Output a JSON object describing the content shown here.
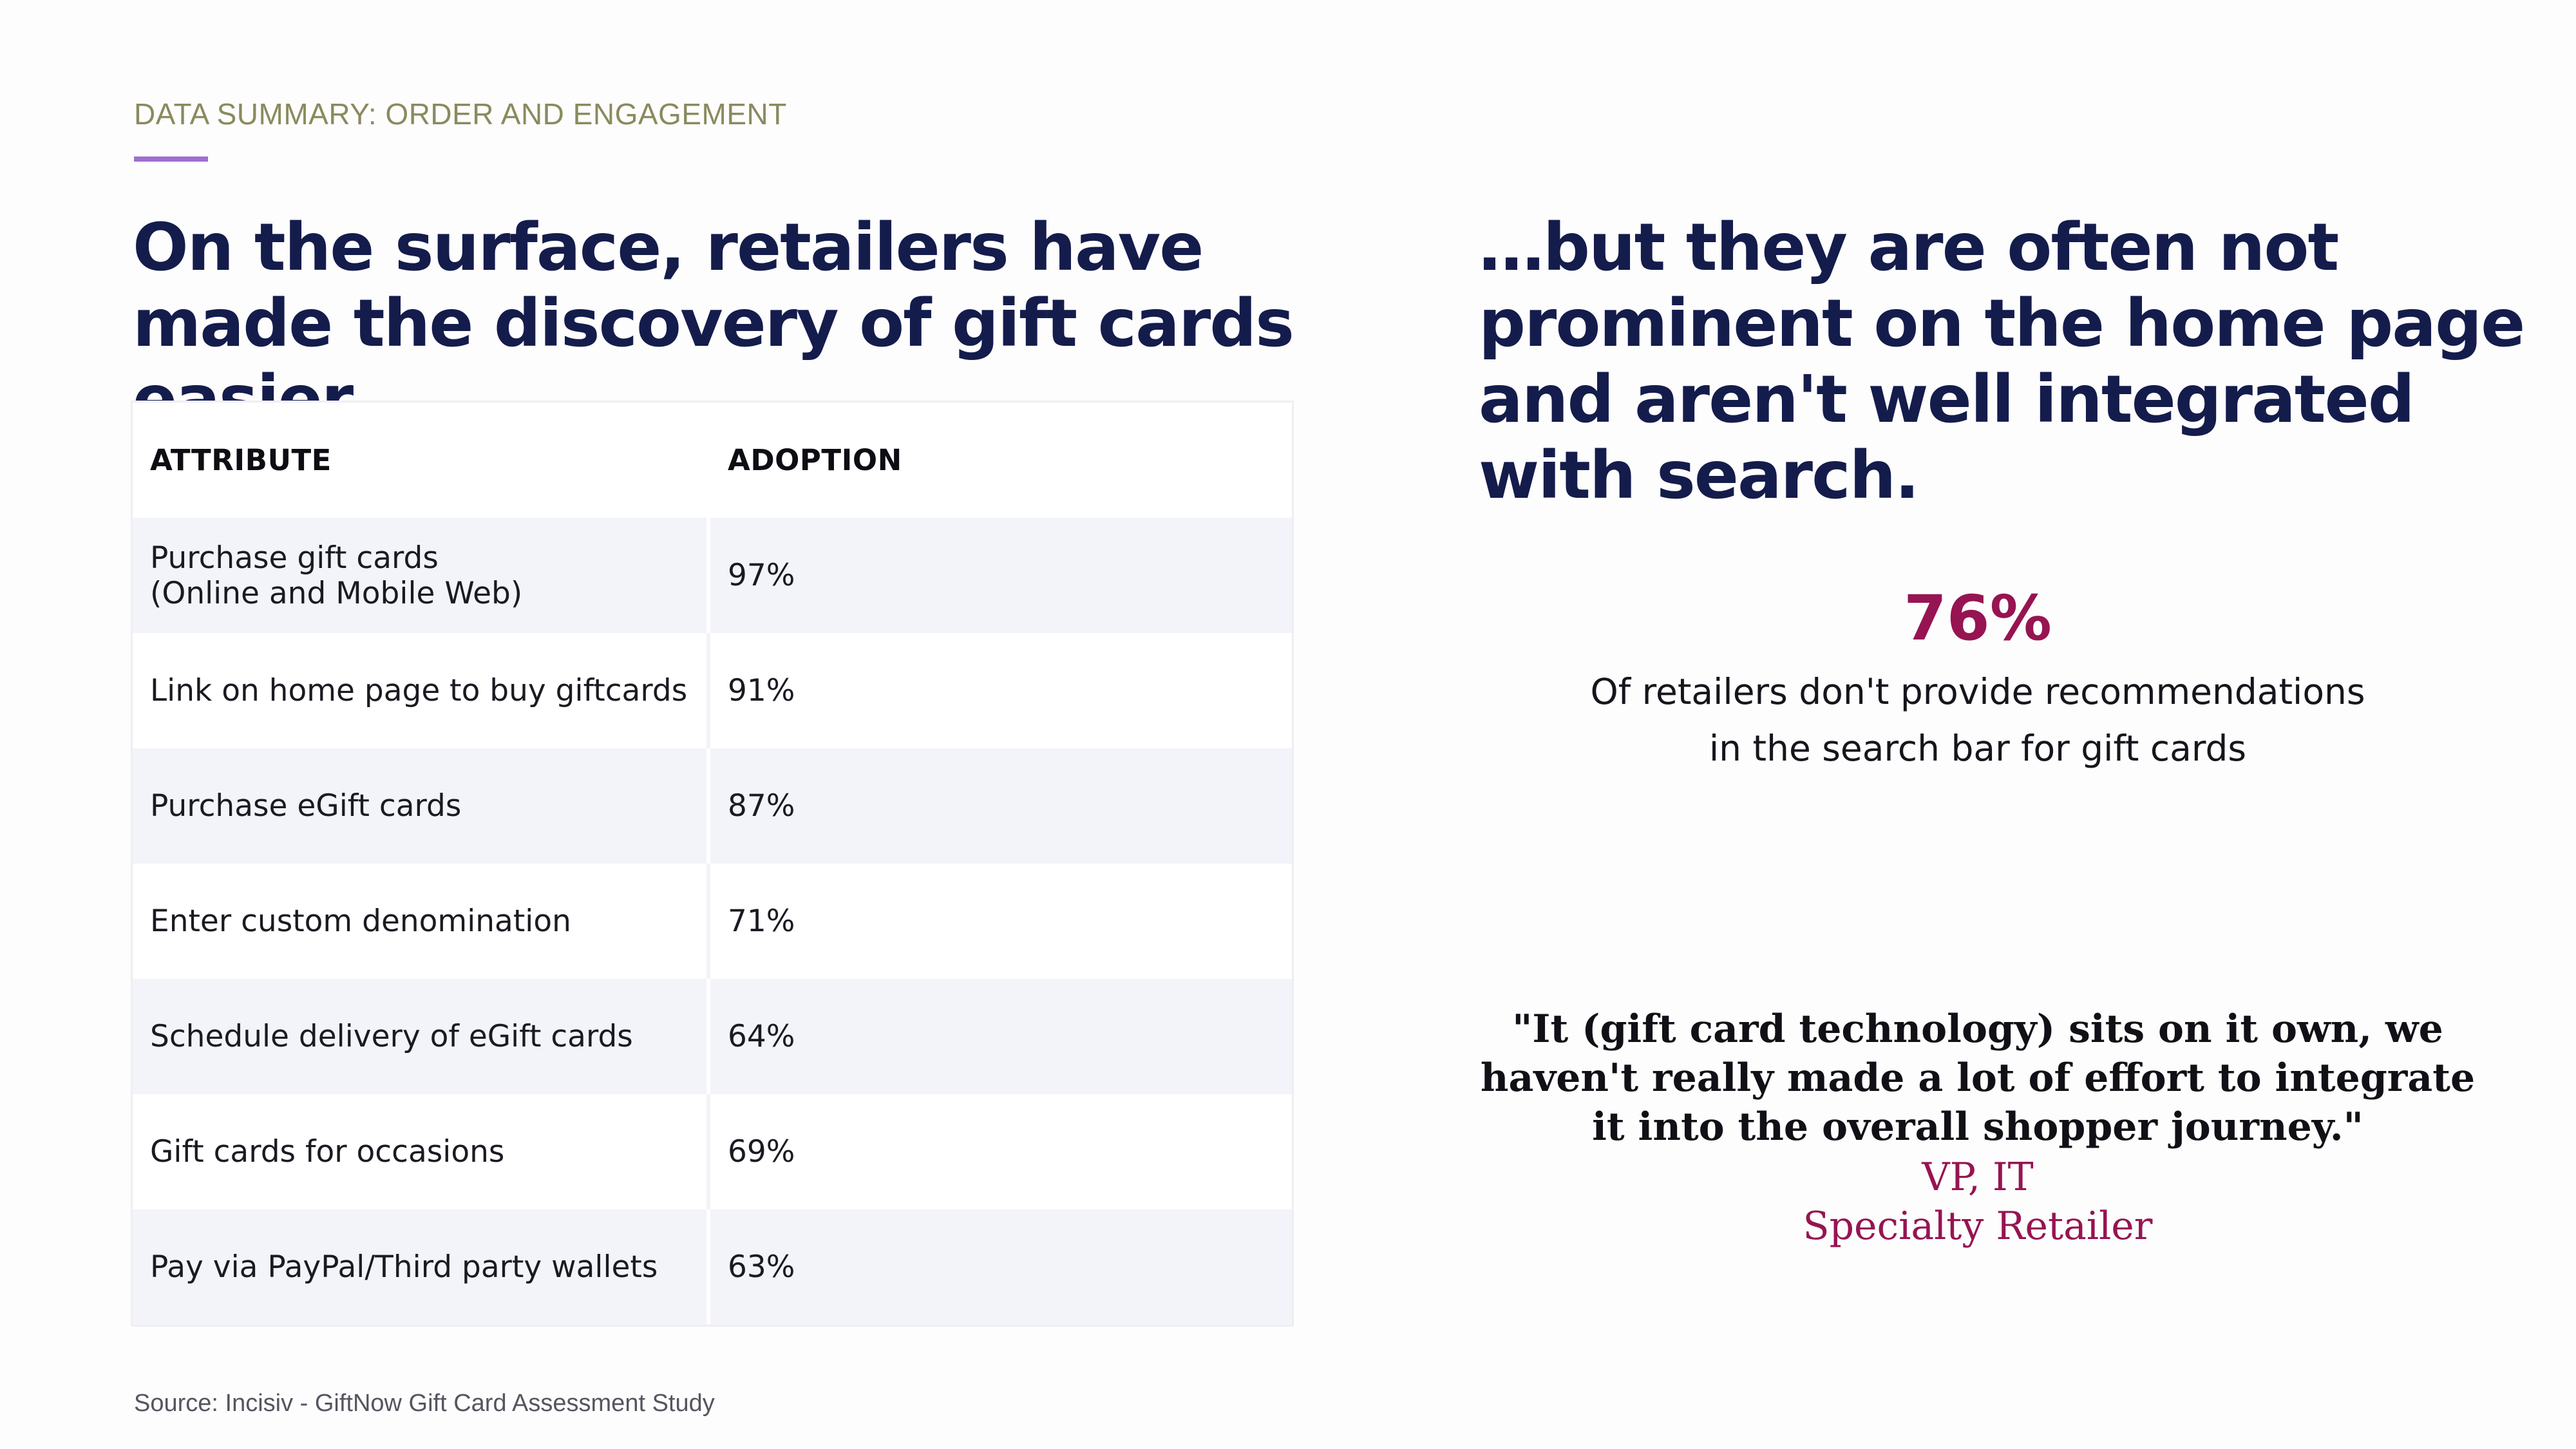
{
  "section_label": "DATA SUMMARY: ORDER AND ENGAGEMENT",
  "left_headline": "On the surface, retailers have made the discovery of gift cards easier…",
  "right_headline": "…but they are often not prominent on the home page and aren't well integrated with search.",
  "table": {
    "headers": [
      "ATTRIBUTE",
      "ADOPTION"
    ],
    "rows": [
      {
        "attribute": "Purchase gift cards\n(Online and Mobile Web)",
        "adoption": "97%"
      },
      {
        "attribute": "Link on home page to buy giftcards",
        "adoption": "91%"
      },
      {
        "attribute": "Purchase eGift cards",
        "adoption": "87%"
      },
      {
        "attribute": "Enter custom denomination",
        "adoption": "71%"
      },
      {
        "attribute": "Schedule delivery of eGift cards",
        "adoption": "64%"
      },
      {
        "attribute": "Gift cards for occasions",
        "adoption": "69%"
      },
      {
        "attribute": "Pay via PayPal/Third party wallets",
        "adoption": "63%"
      }
    ]
  },
  "stat": {
    "value": "76%",
    "caption_line1": "Of retailers don't provide recommendations",
    "caption_line2": "in the search bar for gift cards"
  },
  "quote": {
    "text": "\"It (gift card technology) sits on it own, we haven't really made a lot of effort to integrate it into the overall shopper journey.\"",
    "role": "VP, IT",
    "company": "Specialty Retailer"
  },
  "source": "Source: Incisiv - GiftNow Gift Card Assessment Study",
  "colors": {
    "headline": "#141c4c",
    "accent": "#961451",
    "eyebrow": "#8b8a5e",
    "rule": "#a06fd0",
    "row_shade": "#f3f3fa"
  }
}
